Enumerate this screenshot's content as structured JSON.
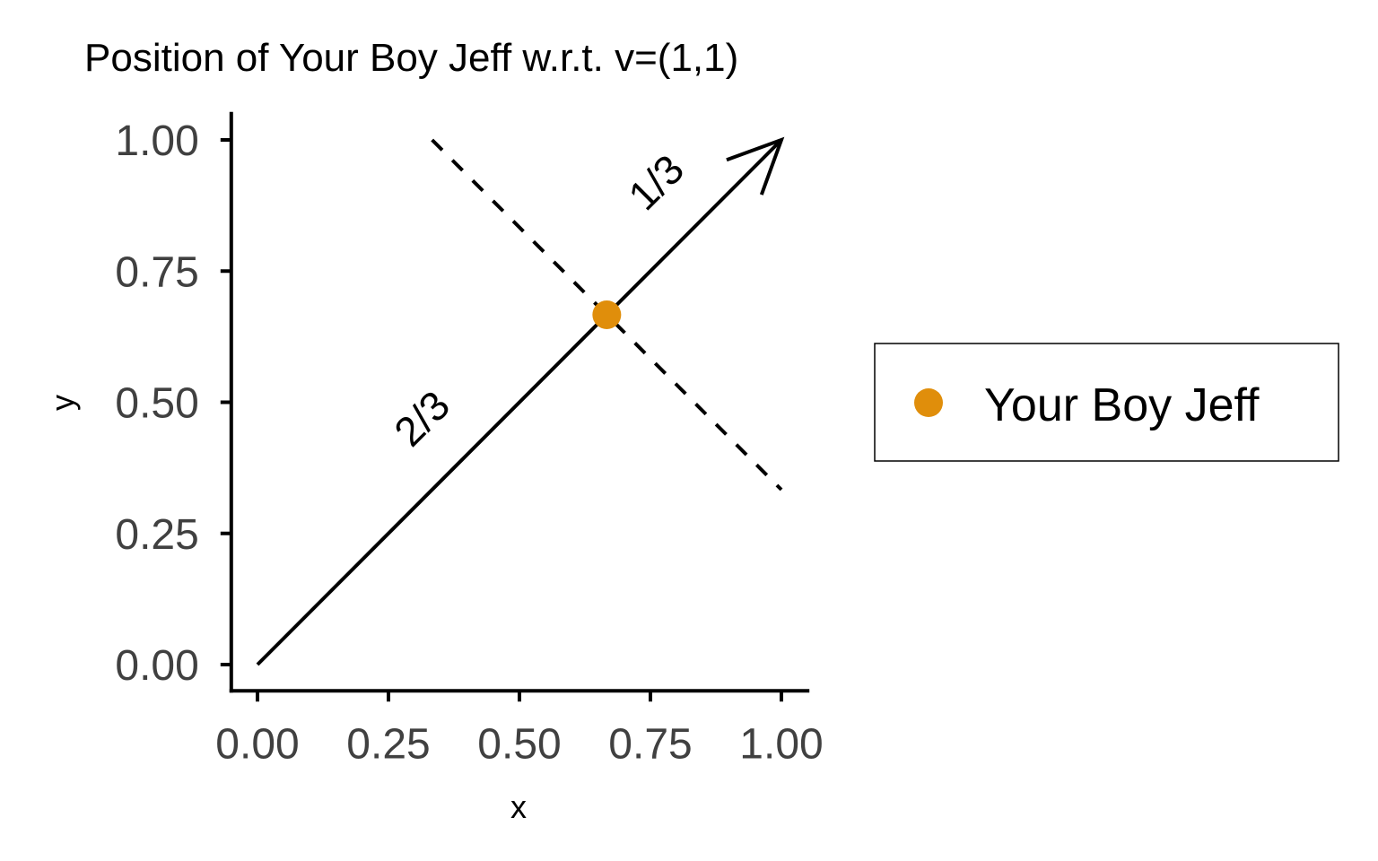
{
  "chart_data": {
    "type": "scatter",
    "title": "Position of Your Boy Jeff w.r.t. v=(1,1)",
    "xlabel": "x",
    "ylabel": "y",
    "xlim": [
      -0.05,
      1.05
    ],
    "ylim": [
      -0.05,
      1.05
    ],
    "x_ticks": [
      0,
      0.25,
      0.5,
      0.75,
      1
    ],
    "y_ticks": [
      0,
      0.25,
      0.5,
      0.75,
      1
    ],
    "x_tick_labels": [
      "0.00",
      "0.25",
      "0.50",
      "0.75",
      "1.00"
    ],
    "y_tick_labels": [
      "0.00",
      "0.25",
      "0.50",
      "0.75",
      "1.00"
    ],
    "grid": false,
    "legend_position": "right",
    "series": [
      {
        "name": "Your Boy Jeff",
        "color": "#E08E0B",
        "points": [
          {
            "x": 0.6667,
            "y": 0.6667
          }
        ]
      }
    ],
    "vector": {
      "from": [
        0,
        0
      ],
      "to": [
        1,
        1
      ],
      "style": "solid",
      "arrowhead": "open"
    },
    "perpendicular_line": {
      "from": [
        0.3333,
        1.0
      ],
      "to": [
        1.0,
        0.3333
      ],
      "style": "dashed"
    },
    "annotations": [
      {
        "text": "2/3",
        "x": 0.333,
        "y": 0.45,
        "angle": 45
      },
      {
        "text": "1/3",
        "x": 0.78,
        "y": 0.9,
        "angle": 45
      }
    ]
  }
}
